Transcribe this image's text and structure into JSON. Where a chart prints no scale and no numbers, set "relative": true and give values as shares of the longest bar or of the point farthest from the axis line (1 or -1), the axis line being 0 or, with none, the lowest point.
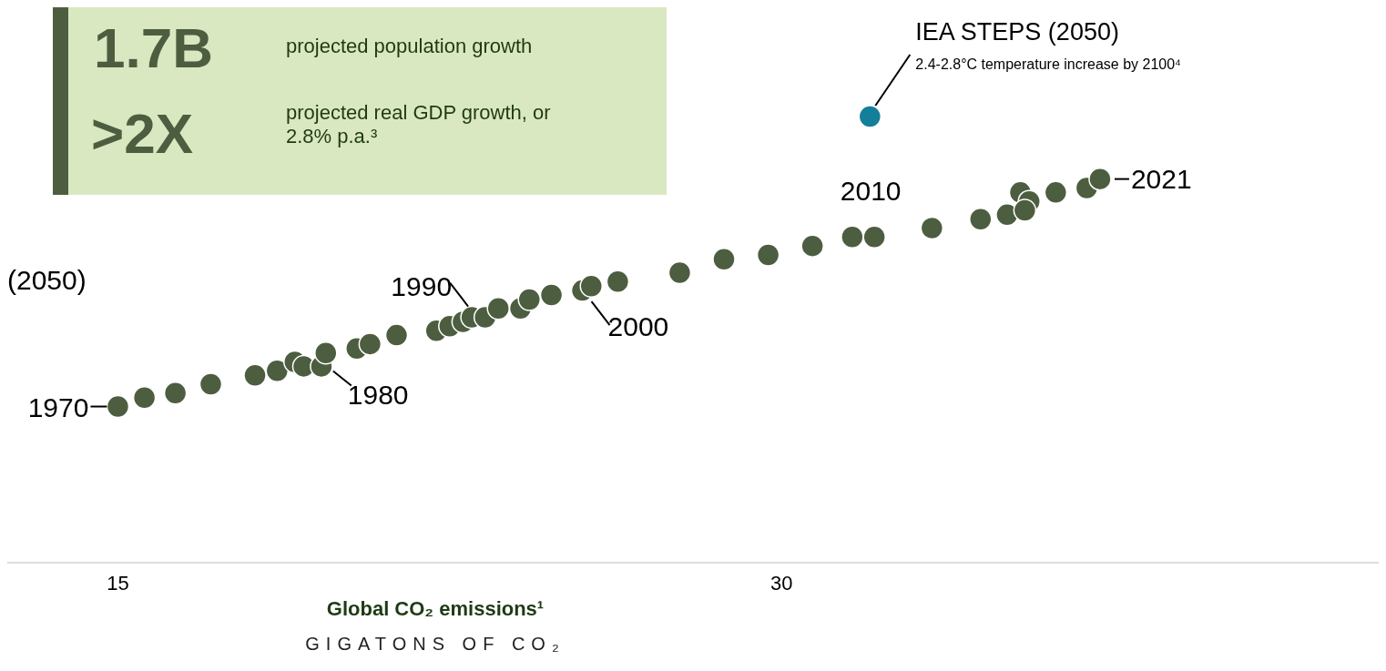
{
  "chart_data": {
    "type": "scatter",
    "relative": true,
    "xlabel": "Global CO₂ emissions¹",
    "xlim": [
      12.5,
      43.5
    ],
    "xticks": [
      15,
      30
    ],
    "grid": false,
    "legend": false,
    "marker": "circle",
    "series": [
      {
        "color": "#4d5e40",
        "x": [
          15.0,
          15.6,
          16.3,
          17.1,
          18.1,
          18.6,
          19.0,
          19.2,
          19.6,
          19.7,
          20.4,
          20.7,
          21.3,
          22.2,
          22.5,
          22.8,
          23.0,
          23.3,
          23.6,
          24.1,
          24.3,
          24.8,
          25.5,
          25.7,
          26.3,
          27.7,
          28.7,
          29.7,
          30.7,
          31.6,
          32.1,
          33.4,
          34.5,
          35.1,
          35.4,
          35.6,
          35.5,
          36.2,
          36.9,
          37.2
        ],
        "values": [
          0.35,
          0.37,
          0.38,
          0.4,
          0.42,
          0.43,
          0.45,
          0.44,
          0.44,
          0.47,
          0.48,
          0.49,
          0.51,
          0.52,
          0.53,
          0.54,
          0.55,
          0.55,
          0.57,
          0.57,
          0.59,
          0.6,
          0.61,
          0.62,
          0.63,
          0.65,
          0.68,
          0.69,
          0.71,
          0.73,
          0.73,
          0.75,
          0.77,
          0.78,
          0.83,
          0.81,
          0.79,
          0.83,
          0.84,
          0.86
        ]
      },
      {
        "color": "#137f9b",
        "x": [
          32.0
        ],
        "values": [
          1
        ]
      }
    ],
    "annotations": [
      {
        "text": "1970",
        "x": 15.0,
        "y": 0.35
      },
      {
        "text": "1980",
        "x": 19.7,
        "y": 0.45
      },
      {
        "text": "1990",
        "x": 23.0,
        "y": 0.55
      },
      {
        "text": "2000",
        "x": 25.5,
        "y": 0.61
      },
      {
        "text": "2010",
        "x": 32.1,
        "y": 0.73
      },
      {
        "text": "2021",
        "x": 37.2,
        "y": 0.86
      },
      "(2050)",
      "1.7B",
      "projected population growth",
      ">2X",
      "projected real GDP growth, or 2.8% p.a.³",
      "GIGATONS OF CO₂",
      "IEA STEPS (2050)",
      "2.4-2.8°C temperature increase by 2100⁴"
    ]
  }
}
